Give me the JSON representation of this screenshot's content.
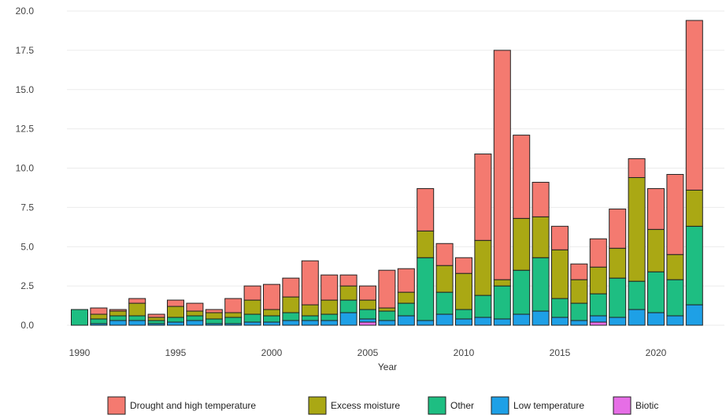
{
  "chart_data": {
    "type": "bar",
    "stacked": true,
    "title": "",
    "xlabel": "Year",
    "ylabel": "",
    "ylim": [
      0,
      20
    ],
    "yticks": [
      "0.0",
      "2.5",
      "5.0",
      "7.5",
      "10.0",
      "12.5",
      "15.0",
      "17.5",
      "20.0"
    ],
    "xticks": [
      "1990",
      "1995",
      "2000",
      "2005",
      "2010",
      "2015",
      "2020"
    ],
    "grid": true,
    "legend_position": "bottom",
    "categories": [
      1990,
      1991,
      1992,
      1993,
      1994,
      1995,
      1996,
      1997,
      1998,
      1999,
      2000,
      2001,
      2002,
      2003,
      2004,
      2005,
      2006,
      2007,
      2008,
      2009,
      2010,
      2011,
      2012,
      2013,
      2014,
      2015,
      2016,
      2017,
      2018,
      2019,
      2020,
      2021,
      2022
    ],
    "series": [
      {
        "name": "Biotic",
        "color": "#e66ee6",
        "values": [
          0,
          0,
          0,
          0,
          0,
          0,
          0,
          0,
          0,
          0,
          0,
          0,
          0,
          0,
          0,
          0.2,
          0,
          0,
          0,
          0,
          0,
          0,
          0,
          0,
          0,
          0,
          0,
          0.2,
          0,
          0,
          0,
          0,
          0
        ]
      },
      {
        "name": "Low temperature",
        "color": "#1ea0e6",
        "values": [
          0,
          0.1,
          0.3,
          0.3,
          0.1,
          0.2,
          0.3,
          0.1,
          0.1,
          0.2,
          0.2,
          0.3,
          0.3,
          0.3,
          0.8,
          0.2,
          0.3,
          0.6,
          0.3,
          0.7,
          0.4,
          0.5,
          0.4,
          0.7,
          0.9,
          0.5,
          0.3,
          0.4,
          0.5,
          1.0,
          0.8,
          0.6,
          1.3
        ]
      },
      {
        "name": "Other",
        "color": "#1ebe82",
        "values": [
          1.0,
          0.3,
          0.3,
          0.3,
          0.2,
          0.3,
          0.3,
          0.3,
          0.4,
          0.5,
          0.4,
          0.5,
          0.3,
          0.4,
          0.8,
          0.6,
          0.6,
          0.8,
          4.0,
          1.4,
          0.6,
          1.4,
          2.1,
          2.8,
          3.4,
          1.2,
          1.1,
          1.4,
          2.5,
          1.8,
          2.6,
          2.3,
          5.0
        ]
      },
      {
        "name": "Excess moisture",
        "color": "#aaa814",
        "values": [
          0,
          0.3,
          0.3,
          0.8,
          0.2,
          0.7,
          0.3,
          0.4,
          0.3,
          0.9,
          0.4,
          1.0,
          0.7,
          0.9,
          0.9,
          0.6,
          0.2,
          0.7,
          1.7,
          1.7,
          2.3,
          3.5,
          0.4,
          3.3,
          2.6,
          3.1,
          1.5,
          1.7,
          1.9,
          6.6,
          2.7,
          1.6,
          2.3
        ]
      },
      {
        "name": "Drought and high temperature",
        "color": "#f47a70",
        "values": [
          0,
          0.4,
          0.1,
          0.3,
          0.2,
          0.4,
          0.5,
          0.2,
          0.9,
          0.9,
          1.6,
          1.2,
          2.8,
          1.6,
          0.7,
          0.9,
          2.4,
          1.5,
          2.7,
          1.4,
          1.0,
          5.5,
          14.6,
          5.3,
          2.2,
          1.5,
          1.0,
          1.8,
          2.5,
          1.2,
          2.6,
          5.1,
          10.8
        ]
      }
    ],
    "legend_order": [
      "Drought and high temperature",
      "Excess moisture",
      "Other",
      "Low temperature",
      "Biotic"
    ]
  }
}
